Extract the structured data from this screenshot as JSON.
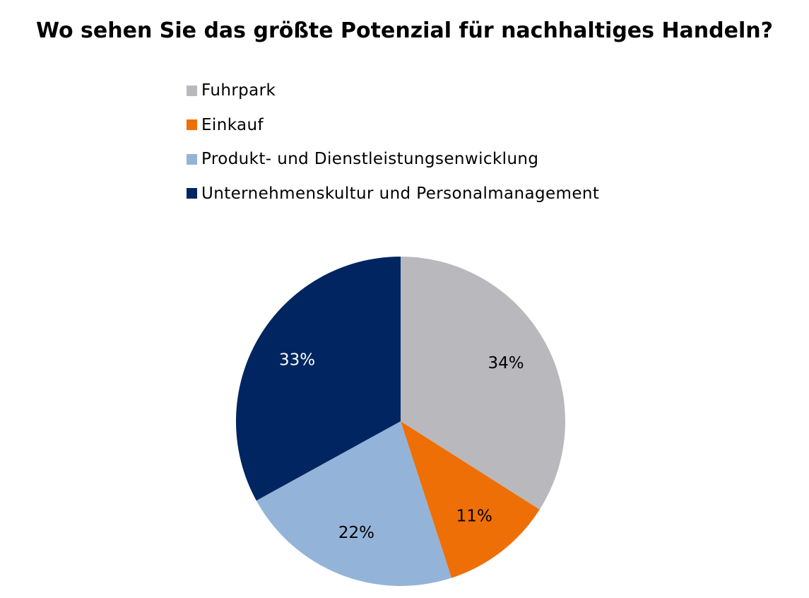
{
  "chart_data": {
    "type": "pie",
    "title": "Wo sehen Sie das größte Potenzial für nachhaltiges Handeln?",
    "legend_position": "top",
    "slices": [
      {
        "label": "Fuhrpark",
        "value": 34,
        "value_label": "34%",
        "color": "#B9B9BD",
        "label_color": "#000000"
      },
      {
        "label": "Einkauf",
        "value": 11,
        "value_label": "11%",
        "color": "#EE6F06",
        "label_color": "#000000"
      },
      {
        "label": "Produkt- und Dienstleistungsenwicklung",
        "value": 22,
        "value_label": "22%",
        "color": "#94B3D9",
        "label_color": "#000000"
      },
      {
        "label": "Unternehmenskultur und Personalmanagement",
        "value": 33,
        "value_label": "33%",
        "color": "#002560",
        "label_color": "#FFFFFF"
      }
    ],
    "start_angle_deg": 0,
    "direction": "clockwise"
  }
}
